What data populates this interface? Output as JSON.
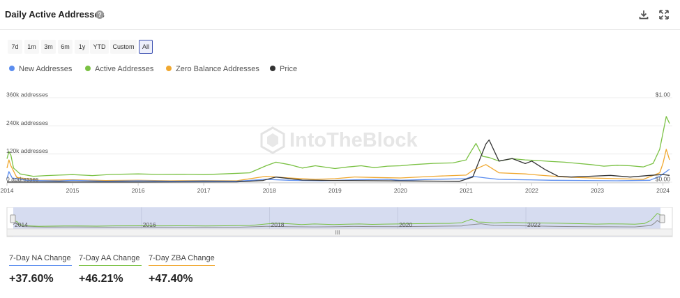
{
  "header": {
    "title": "Daily Active Addresses",
    "help": "?"
  },
  "icons": {
    "help": "question-circle-icon",
    "download": "download-icon",
    "expand": "expand-icon"
  },
  "ranges": [
    {
      "label": "7d",
      "active": false
    },
    {
      "label": "1m",
      "active": false
    },
    {
      "label": "3m",
      "active": false
    },
    {
      "label": "6m",
      "active": false
    },
    {
      "label": "1y",
      "active": false
    },
    {
      "label": "YTD",
      "active": false
    },
    {
      "label": "Custom",
      "active": false
    },
    {
      "label": "All",
      "active": true
    }
  ],
  "chart_data": {
    "type": "line",
    "watermark": "IntoTheBlock",
    "x_ticks": [
      "2014",
      "2015",
      "2016",
      "2017",
      "2018",
      "2019",
      "2020",
      "2021",
      "2022",
      "2023",
      "2024"
    ],
    "navigator_ticks": [
      "2014",
      "2016",
      "2018",
      "2020",
      "2022"
    ],
    "navigator_handle": "III",
    "y_left": {
      "ticks": [
        "0 addresses",
        "120k addresses",
        "240k addresses",
        "360k addresses"
      ],
      "values": [
        0,
        120000,
        240000,
        360000
      ]
    },
    "y_right": {
      "ticks": [
        "$0.00",
        "$1.00"
      ],
      "values": [
        0,
        1
      ]
    },
    "series": [
      {
        "name": "New Addresses",
        "axis": "left",
        "color": "#5b8def",
        "x": [
          2014.0,
          2014.03,
          2014.08,
          2014.3,
          2014.8,
          2015.0,
          2015.5,
          2016.0,
          2016.5,
          2017.0,
          2017.5,
          2017.95,
          2018.3,
          2018.8,
          2019.3,
          2019.8,
          2020.0,
          2020.5,
          2021.0,
          2021.1,
          2021.3,
          2021.5,
          2021.9,
          2022.3,
          2022.8,
          2023.3,
          2023.8,
          2023.95,
          2024.1
        ],
        "y": [
          15000,
          45000,
          18000,
          8000,
          5000,
          8000,
          4000,
          6000,
          4000,
          5000,
          4000,
          12000,
          8000,
          6000,
          10000,
          12000,
          8000,
          12000,
          15000,
          25000,
          18000,
          12000,
          10000,
          8000,
          7000,
          6000,
          8000,
          25000,
          55000
        ]
      },
      {
        "name": "Active Addresses",
        "axis": "left",
        "color": "#7ac143",
        "x": [
          2014.0,
          2014.03,
          2014.06,
          2014.1,
          2014.2,
          2014.4,
          2014.6,
          2014.8,
          2015.0,
          2015.3,
          2015.6,
          2016.0,
          2016.3,
          2016.7,
          2017.0,
          2017.3,
          2017.7,
          2017.95,
          2018.1,
          2018.3,
          2018.5,
          2018.7,
          2019.0,
          2019.2,
          2019.4,
          2019.6,
          2019.8,
          2020.0,
          2020.2,
          2020.5,
          2020.8,
          2021.0,
          2021.05,
          2021.15,
          2021.25,
          2021.35,
          2021.5,
          2021.7,
          2021.9,
          2022.1,
          2022.3,
          2022.5,
          2022.7,
          2022.9,
          2023.1,
          2023.3,
          2023.5,
          2023.7,
          2023.85,
          2023.95,
          2024.0,
          2024.05,
          2024.1
        ],
        "y": [
          100000,
          130000,
          115000,
          60000,
          35000,
          25000,
          28000,
          30000,
          32000,
          28000,
          33000,
          35000,
          33000,
          34000,
          32000,
          35000,
          40000,
          70000,
          85000,
          75000,
          60000,
          70000,
          58000,
          65000,
          70000,
          62000,
          68000,
          70000,
          75000,
          80000,
          82000,
          95000,
          120000,
          165000,
          110000,
          105000,
          90000,
          100000,
          95000,
          92000,
          88000,
          85000,
          80000,
          75000,
          68000,
          72000,
          70000,
          65000,
          80000,
          140000,
          210000,
          280000,
          250000
        ]
      },
      {
        "name": "Zero Balance Addresses",
        "axis": "left",
        "color": "#f0a830",
        "x": [
          2014.0,
          2014.03,
          2014.06,
          2014.15,
          2014.5,
          2015.0,
          2015.5,
          2016.0,
          2016.5,
          2017.0,
          2017.5,
          2017.95,
          2018.3,
          2018.7,
          2019.0,
          2019.3,
          2019.6,
          2020.0,
          2020.5,
          2021.0,
          2021.1,
          2021.3,
          2021.5,
          2021.9,
          2022.1,
          2022.5,
          2022.9,
          2023.3,
          2023.7,
          2023.95,
          2024.0,
          2024.05,
          2024.1
        ],
        "y": [
          60000,
          95000,
          70000,
          20000,
          8000,
          10000,
          7000,
          8000,
          6000,
          7000,
          6000,
          25000,
          18000,
          12000,
          15000,
          22000,
          20000,
          18000,
          25000,
          30000,
          50000,
          75000,
          40000,
          35000,
          30000,
          22000,
          18000,
          15000,
          12000,
          40000,
          80000,
          140000,
          95000
        ]
      },
      {
        "name": "Price",
        "axis": "right",
        "color": "#333333",
        "x": [
          2014.0,
          2016.0,
          2017.5,
          2017.9,
          2018.1,
          2018.5,
          2019.0,
          2020.0,
          2020.9,
          2021.1,
          2021.3,
          2021.35,
          2021.5,
          2021.7,
          2021.9,
          2022.0,
          2022.2,
          2022.4,
          2022.6,
          2022.9,
          2023.2,
          2023.5,
          2023.8,
          2024.0,
          2024.1
        ],
        "y": [
          0.002,
          0.002,
          0.003,
          0.02,
          0.06,
          0.025,
          0.02,
          0.015,
          0.01,
          0.06,
          0.45,
          0.5,
          0.25,
          0.28,
          0.22,
          0.25,
          0.15,
          0.07,
          0.06,
          0.07,
          0.08,
          0.06,
          0.08,
          0.09,
          0.08
        ]
      }
    ],
    "xlim": [
      2014,
      2024.1
    ],
    "ylim_left": [
      0,
      360000
    ],
    "ylim_right": [
      0,
      1
    ],
    "legend_position": "top-left"
  },
  "stats": [
    {
      "label": "7-Day NA Change",
      "value": "+37.60%",
      "color": "#5b8def"
    },
    {
      "label": "7-Day AA Change",
      "value": "+46.21%",
      "color": "#7ac143"
    },
    {
      "label": "7-Day ZBA Change",
      "value": "+47.40%",
      "color": "#f0a830"
    }
  ]
}
